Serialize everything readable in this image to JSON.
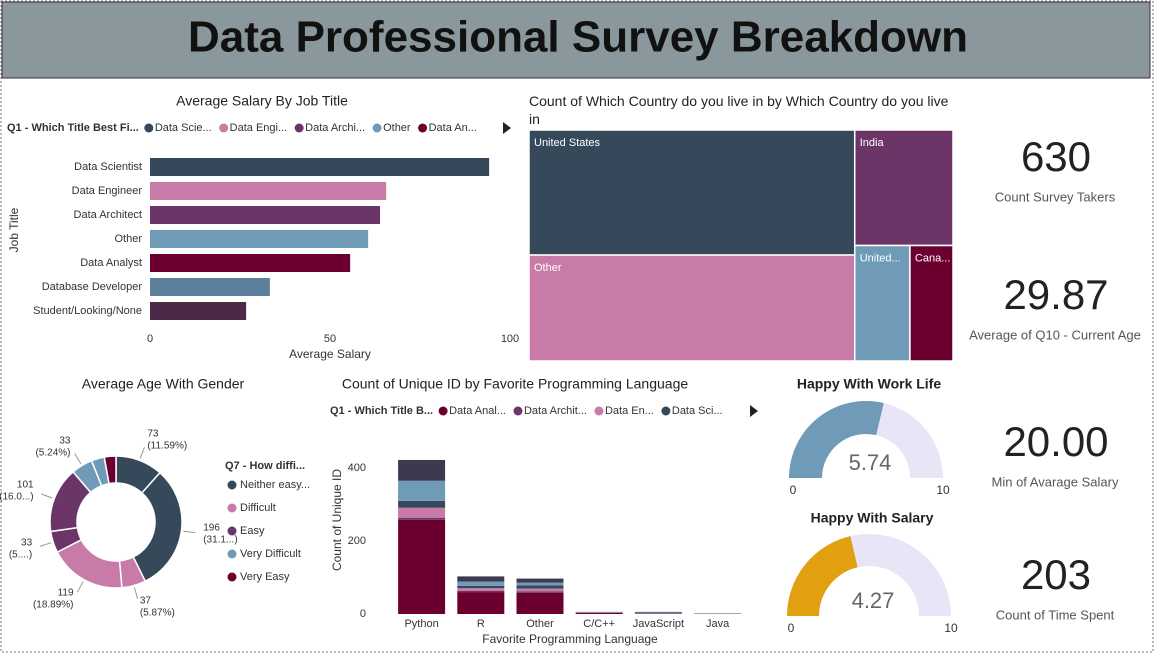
{
  "title": "Data Professional Survey Breakdown",
  "chart_data": [
    {
      "type": "hbar",
      "title": "Average Salary By Job Title",
      "legend_title": "Q1 - Which Title Best Fi...",
      "legend": [
        "Data Scie...",
        "Data Engi...",
        "Data Archi...",
        "Other",
        "Data An..."
      ],
      "categories": [
        "Data Scientist",
        "Data Engineer",
        "Data Architect",
        "Other",
        "Data Analyst",
        "Database Developer",
        "Student/Looking/None"
      ],
      "values": [
        94.2,
        65.6,
        63.9,
        60.6,
        55.6,
        33.3,
        26.7
      ],
      "colors": [
        "#35495a",
        "#c77ba6",
        "#6b3567",
        "#6f9ab8",
        "#6b0030",
        "#5b7f9c",
        "#4b2a48"
      ],
      "xlim": [
        0,
        100
      ],
      "xticks": [
        0,
        50,
        100
      ],
      "xlabel": "Average Salary",
      "ylabel": "Job Title"
    },
    {
      "type": "treemap",
      "title": "Count of Which Country do you live in by Which Country do you live in",
      "categories": [
        "United States",
        "Other",
        "India",
        "United...",
        "Cana..."
      ],
      "values": [
        262,
        222,
        73,
        41,
        32
      ],
      "colors": [
        "#35495a",
        "#c77ba6",
        "#6b3567",
        "#6f9ab8",
        "#6b0030"
      ]
    },
    {
      "type": "donut",
      "title": "Average Age With Gender",
      "legend_title": "Q7 - How diffi...",
      "legend": [
        "Neither easy...",
        "Difficult",
        "Easy",
        "Very Difficult",
        "Very Easy"
      ],
      "legend_colors": [
        "#35495a",
        "#c77ba6",
        "#6b3567",
        "#6f9ab8",
        "#6b0030"
      ],
      "values": [
        73,
        196,
        37,
        119,
        33,
        101,
        33,
        20,
        18
      ],
      "percent_labels": [
        "(11.59%)",
        "(31.1...)",
        "(5.87%)",
        "(18.89%)",
        "(5....)",
        "(16.0...)",
        "(5.24%)",
        null,
        null
      ],
      "colors": [
        "#35495a",
        "#35495a",
        "#c77ba6",
        "#c77ba6",
        "#6b3567",
        "#6b3567",
        "#6f9ab8",
        "#6f9ab8",
        "#6b0030"
      ]
    },
    {
      "type": "stacked_bar",
      "title": "Count of Unique ID by Favorite Programming Language",
      "legend_title": "Q1 - Which Title B...",
      "categories": [
        "Python",
        "R",
        "Other",
        "C/C++",
        "JavaScript",
        "Java"
      ],
      "series": [
        {
          "name": "Data Anal...",
          "color": "#6b0030",
          "values": [
            258,
            60,
            58,
            3,
            1,
            0
          ]
        },
        {
          "name": "Data Archit...",
          "color": "#6b3567",
          "values": [
            5,
            3,
            4,
            0,
            0,
            0
          ]
        },
        {
          "name": "Data En...",
          "color": "#c77ba6",
          "values": [
            28,
            8,
            8,
            1,
            1,
            0
          ]
        },
        {
          "name": "Data Sci...",
          "color": "#35495a",
          "values": [
            19,
            6,
            8,
            1,
            2,
            1
          ]
        },
        {
          "name": null,
          "color": "#6f9ab8",
          "values": [
            55,
            12,
            8,
            1,
            2,
            1
          ]
        },
        {
          "name": null,
          "color": "#3d3a50",
          "values": [
            57,
            14,
            11,
            0,
            0,
            0
          ]
        }
      ],
      "ylim": [
        0,
        440
      ],
      "yticks": [
        0,
        200,
        400
      ],
      "xlabel": "Favorite Programming Language",
      "ylabel": "Count of Unique ID"
    },
    {
      "type": "gauge",
      "title": "Happy With Work Life",
      "value": 5.74,
      "min": 0,
      "max": 10,
      "color": "#6f9ab8",
      "track_color": "#e8e6f6"
    },
    {
      "type": "gauge",
      "title": "Happy With Salary",
      "value": 4.27,
      "min": 0,
      "max": 10,
      "color": "#e0a010",
      "track_color": "#e8e6f6"
    }
  ],
  "cards": [
    {
      "value": 630,
      "label": "Count Survey Takers"
    },
    {
      "value": 29.87,
      "label": "Average of Q10 - Current Age"
    },
    {
      "value": 20,
      "value_label": "20.00",
      "label": "Min of Avarage Salary"
    },
    {
      "value": 203,
      "label": "Count of Time Spent"
    }
  ]
}
